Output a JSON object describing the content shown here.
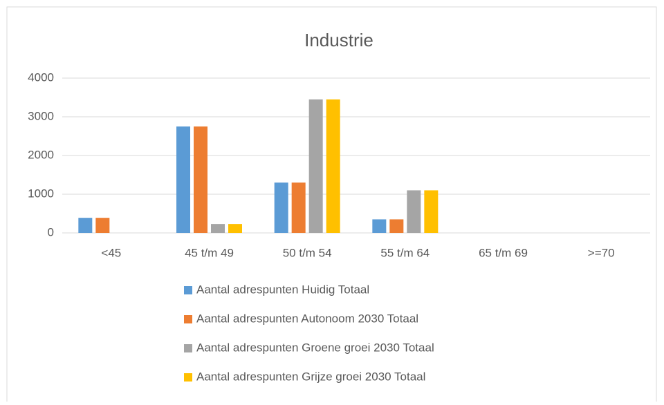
{
  "chart_data": {
    "type": "bar",
    "title": "Industrie",
    "categories": [
      "<45",
      "45 t/m 49",
      "50 t/m 54",
      "55 t/m 64",
      "65 t/m 69",
      ">=70"
    ],
    "series": [
      {
        "name": "Aantal adrespunten Huidig Totaal",
        "color": "#5b9bd5",
        "values": [
          390,
          2750,
          1300,
          350,
          0,
          0
        ]
      },
      {
        "name": "Aantal adrespunten Autonoom 2030 Totaal",
        "color": "#ed7d31",
        "values": [
          390,
          2750,
          1300,
          350,
          0,
          0
        ]
      },
      {
        "name": "Aantal adrespunten Groene groei 2030 Totaal",
        "color": "#a5a5a5",
        "values": [
          0,
          230,
          3450,
          1100,
          0,
          0
        ]
      },
      {
        "name": "Aantal adrespunten Grijze groei 2030 Totaal",
        "color": "#ffc000",
        "values": [
          0,
          230,
          3450,
          1100,
          0,
          0
        ]
      }
    ],
    "ylim": [
      0,
      4000
    ],
    "yticks": [
      0,
      1000,
      2000,
      3000,
      4000
    ],
    "grid": true,
    "legend": "bottom"
  }
}
